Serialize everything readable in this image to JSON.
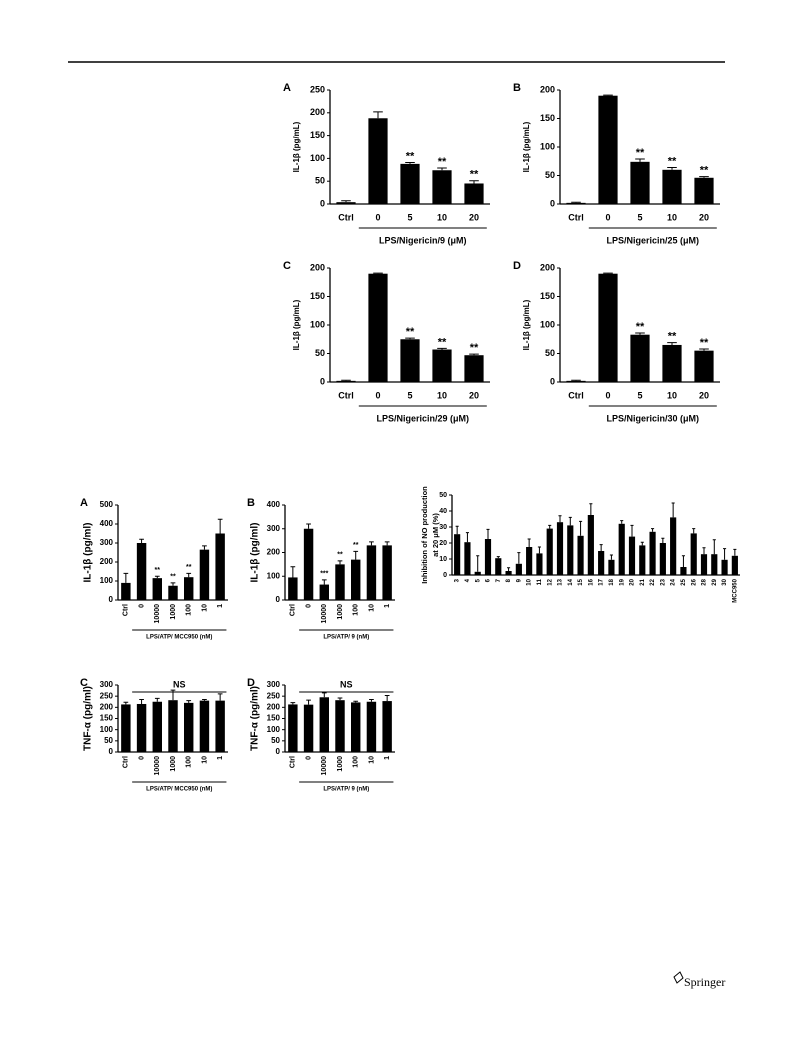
{
  "chart_data": [
    {
      "type": "bar",
      "panel": "A",
      "ylabel": "IL-1β (pg/mL)",
      "xlabel": "LPS/Nigericin/9 (μM)",
      "categories": [
        "Ctrl",
        "0",
        "5",
        "10",
        "20"
      ],
      "values": [
        4,
        188,
        88,
        74,
        45
      ],
      "errors": [
        3,
        14,
        3,
        5,
        6
      ],
      "marks": [
        null,
        null,
        "**",
        "**",
        "**"
      ],
      "color": "#000000",
      "ylim": [
        0,
        250
      ],
      "yticks": [
        0,
        50,
        100,
        150,
        200,
        250
      ]
    },
    {
      "type": "bar",
      "panel": "B",
      "ylabel": "IL-1β (pg/mL)",
      "xlabel": "LPS/Nigericin/25 (μM)",
      "categories": [
        "Ctrl",
        "0",
        "5",
        "10",
        "20"
      ],
      "values": [
        2,
        190,
        74,
        60,
        46
      ],
      "errors": [
        1,
        1,
        5,
        4,
        2
      ],
      "marks": [
        null,
        null,
        "**",
        "**",
        "**"
      ],
      "color": "#000000",
      "ylim": [
        0,
        200
      ],
      "yticks": [
        0,
        50,
        100,
        150,
        200
      ]
    },
    {
      "type": "bar",
      "panel": "C",
      "ylabel": "IL-1β (pg/mL)",
      "xlabel": "LPS/Nigericin/29 (μM)",
      "categories": [
        "Ctrl",
        "0",
        "5",
        "10",
        "20"
      ],
      "values": [
        2,
        190,
        75,
        57,
        47
      ],
      "errors": [
        1,
        1,
        2,
        2,
        2
      ],
      "marks": [
        null,
        null,
        "**",
        "**",
        "**"
      ],
      "color": "#000000",
      "ylim": [
        0,
        200
      ],
      "yticks": [
        0,
        50,
        100,
        150,
        200
      ]
    },
    {
      "type": "bar",
      "panel": "D",
      "ylabel": "IL-1β (pg/mL)",
      "xlabel": "LPS/Nigericin/30 (μM)",
      "categories": [
        "Ctrl",
        "0",
        "5",
        "10",
        "20"
      ],
      "values": [
        2,
        190,
        83,
        65,
        55
      ],
      "errors": [
        1,
        1,
        3,
        4,
        3
      ],
      "marks": [
        null,
        null,
        "**",
        "**",
        "**"
      ],
      "color": "#000000",
      "ylim": [
        0,
        200
      ],
      "yticks": [
        0,
        50,
        100,
        150,
        200
      ]
    },
    {
      "type": "bar",
      "panel": "A",
      "ylabel": "IL-1β (pg/ml)",
      "xlabel": "LPS/ATP/ MCC950 (nM)",
      "categories": [
        "Ctrl",
        "0",
        "10000",
        "1000",
        "100",
        "10",
        "1"
      ],
      "values": [
        90,
        300,
        115,
        75,
        120,
        265,
        350
      ],
      "errors": [
        50,
        20,
        10,
        15,
        20,
        20,
        75
      ],
      "marks": [
        null,
        null,
        "**",
        "**",
        "**",
        null,
        null
      ],
      "color": "#000000",
      "ylim": [
        0,
        500
      ],
      "yticks": [
        0,
        100,
        200,
        300,
        400,
        500
      ]
    },
    {
      "type": "bar",
      "panel": "B",
      "ylabel": "IL-1β (pg/ml)",
      "xlabel": "LPS/ATP/ 9 (nM)",
      "categories": [
        "Ctrl",
        "0",
        "10000",
        "1000",
        "100",
        "10",
        "1"
      ],
      "values": [
        95,
        300,
        65,
        150,
        170,
        230,
        230
      ],
      "errors": [
        45,
        20,
        20,
        15,
        35,
        15,
        15
      ],
      "marks": [
        null,
        null,
        "***",
        "**",
        "**",
        null,
        null
      ],
      "color": "#000000",
      "ylim": [
        0,
        400
      ],
      "yticks": [
        0,
        100,
        200,
        300,
        400
      ]
    },
    {
      "type": "bar",
      "panel": "C",
      "ylabel": "TNF-α (pg/ml)",
      "xlabel": "LPS/ATP/ MCC950 (nM)",
      "group_label": "NS",
      "categories": [
        "Ctrl",
        "0",
        "10000",
        "1000",
        "100",
        "10",
        "1"
      ],
      "values": [
        213,
        215,
        225,
        232,
        220,
        230,
        230
      ],
      "errors": [
        10,
        20,
        15,
        45,
        10,
        5,
        30
      ],
      "color": "#000000",
      "ylim": [
        0,
        300
      ],
      "yticks": [
        0,
        50,
        100,
        150,
        200,
        250,
        300
      ]
    },
    {
      "type": "bar",
      "panel": "D",
      "ylabel": "TNF-α (pg/ml)",
      "xlabel": "LPS/ATP/ 9 (nM)",
      "group_label": "NS",
      "categories": [
        "Ctrl",
        "0",
        "10000",
        "1000",
        "100",
        "10",
        "1"
      ],
      "values": [
        213,
        212,
        245,
        232,
        222,
        225,
        228
      ],
      "errors": [
        8,
        20,
        20,
        10,
        5,
        10,
        25
      ],
      "color": "#000000",
      "ylim": [
        0,
        300
      ],
      "yticks": [
        0,
        50,
        100,
        150,
        200,
        250,
        300
      ]
    },
    {
      "type": "bar",
      "ylabel": [
        "Inhibition of NO production",
        "at 20 μM (%)"
      ],
      "categories": [
        "3",
        "4",
        "5",
        "6",
        "7",
        "8",
        "9",
        "10",
        "11",
        "12",
        "13",
        "14",
        "15",
        "16",
        "17",
        "18",
        "19",
        "20",
        "21",
        "22",
        "23",
        "24",
        "25",
        "26",
        "28",
        "29",
        "30",
        "MCC950"
      ],
      "values": [
        25.5,
        20.5,
        2,
        22.5,
        10.5,
        2.5,
        7,
        17.5,
        13.5,
        29,
        33,
        31,
        24.5,
        37.5,
        15,
        9.5,
        32,
        24,
        18.5,
        27,
        20,
        36,
        5,
        26,
        13,
        13,
        9.5,
        12
      ],
      "errors": [
        5,
        6,
        10,
        6,
        1,
        2,
        7,
        5,
        4,
        2,
        4,
        5,
        9,
        7,
        4,
        3,
        2,
        7,
        2,
        2,
        3,
        9,
        7,
        3,
        4,
        9,
        7,
        4
      ],
      "color": "#000000",
      "ylim": [
        0,
        50
      ],
      "yticks": [
        0,
        10,
        20,
        30,
        40,
        50
      ]
    }
  ],
  "footer": {
    "publisher": "Springer"
  }
}
